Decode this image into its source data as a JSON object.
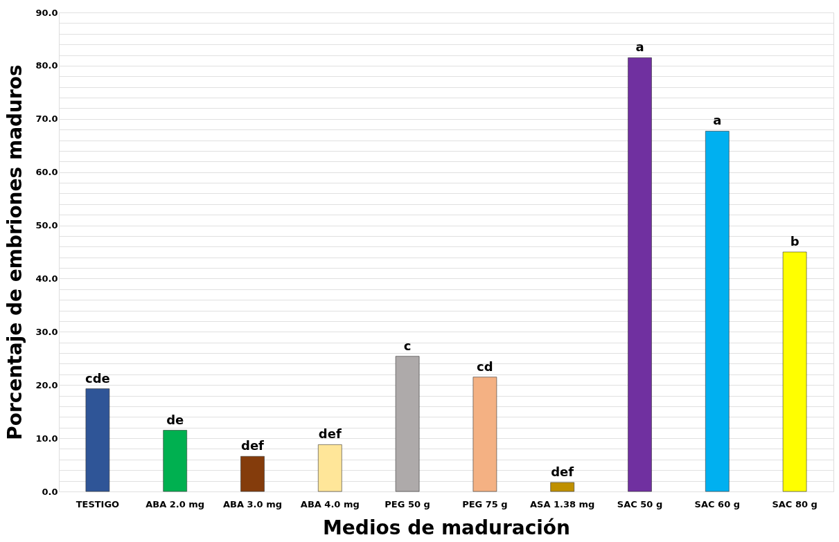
{
  "chart_data": {
    "type": "bar",
    "xlabel": "Medios de maduración",
    "ylabel": "Porcentaje de embriones maduros",
    "categories": [
      "TESTIGO",
      "ABA 2.0 mg",
      "ABA 3.0 mg",
      "ABA 4.0 mg",
      "PEG 50 g",
      "PEG 75 g",
      "ASA 1.38 mg",
      "SAC 50 g",
      "SAC 60 g",
      "SAC 80 g"
    ],
    "values": [
      19.3,
      11.5,
      6.6,
      8.8,
      25.4,
      21.5,
      1.7,
      81.5,
      67.7,
      45.0
    ],
    "colors": [
      "#2f5597",
      "#00b050",
      "#843c0c",
      "#ffe699",
      "#aeaaaa",
      "#f4b183",
      "#bf9000",
      "#7030a0",
      "#00b0f0",
      "#ffff00"
    ],
    "ylim": [
      0,
      90
    ],
    "yticks": [
      {
        "value": 0,
        "label": "0.0"
      },
      {
        "value": 2,
        "label": null
      },
      {
        "value": 4,
        "label": null
      },
      {
        "value": 6,
        "label": null
      },
      {
        "value": 8,
        "label": null
      },
      {
        "value": 10,
        "label": "10.0"
      },
      {
        "value": 12,
        "label": null
      },
      {
        "value": 14,
        "label": null
      },
      {
        "value": 16,
        "label": null
      },
      {
        "value": 18,
        "label": null
      },
      {
        "value": 20,
        "label": "20.0"
      },
      {
        "value": 22,
        "label": null
      },
      {
        "value": 24,
        "label": null
      },
      {
        "value": 26,
        "label": null
      },
      {
        "value": 28,
        "label": null
      },
      {
        "value": 30,
        "label": "30.0"
      },
      {
        "value": 32,
        "label": null
      },
      {
        "value": 34,
        "label": null
      },
      {
        "value": 36,
        "label": null
      },
      {
        "value": 38,
        "label": null
      },
      {
        "value": 40,
        "label": "40.0"
      },
      {
        "value": 42,
        "label": null
      },
      {
        "value": 44,
        "label": null
      },
      {
        "value": 46,
        "label": null
      },
      {
        "value": 48,
        "label": null
      },
      {
        "value": 50,
        "label": "50.0"
      },
      {
        "value": 52,
        "label": null
      },
      {
        "value": 54,
        "label": null
      },
      {
        "value": 56,
        "label": null
      },
      {
        "value": 58,
        "label": null
      },
      {
        "value": 60,
        "label": "60.0"
      },
      {
        "value": 62,
        "label": null
      },
      {
        "value": 64,
        "label": null
      },
      {
        "value": 66,
        "label": null
      },
      {
        "value": 68,
        "label": null
      },
      {
        "value": 70,
        "label": "70.0"
      },
      {
        "value": 72,
        "label": null
      },
      {
        "value": 74,
        "label": null
      },
      {
        "value": 76,
        "label": null
      },
      {
        "value": 78,
        "label": null
      },
      {
        "value": 80,
        "label": "80.0"
      },
      {
        "value": 82,
        "label": null
      },
      {
        "value": 84,
        "label": null
      },
      {
        "value": 86,
        "label": null
      },
      {
        "value": 88,
        "label": null
      },
      {
        "value": 90,
        "label": "90.0"
      }
    ],
    "grid": "y",
    "annotations": [
      {
        "text": "cde",
        "x": "TESTIGO",
        "y": 19.3
      },
      {
        "text": "de",
        "x": "ABA 2.0 mg",
        "y": 11.5
      },
      {
        "text": "def",
        "x": "ABA 3.0 mg",
        "y": 6.6
      },
      {
        "text": "def",
        "x": "ABA 4.0 mg",
        "y": 8.8
      },
      {
        "text": "c",
        "x": "PEG 50 g",
        "y": 25.4
      },
      {
        "text": "cd",
        "x": "PEG 75 g",
        "y": 21.5
      },
      {
        "text": "def",
        "x": "ASA 1.38 mg",
        "y": 1.7
      },
      {
        "text": "a",
        "x": "SAC 50 g",
        "y": 81.5
      },
      {
        "text": "a",
        "x": "SAC 60 g",
        "y": 67.7
      },
      {
        "text": "b",
        "x": "SAC 80 g",
        "y": 45.0
      }
    ]
  }
}
